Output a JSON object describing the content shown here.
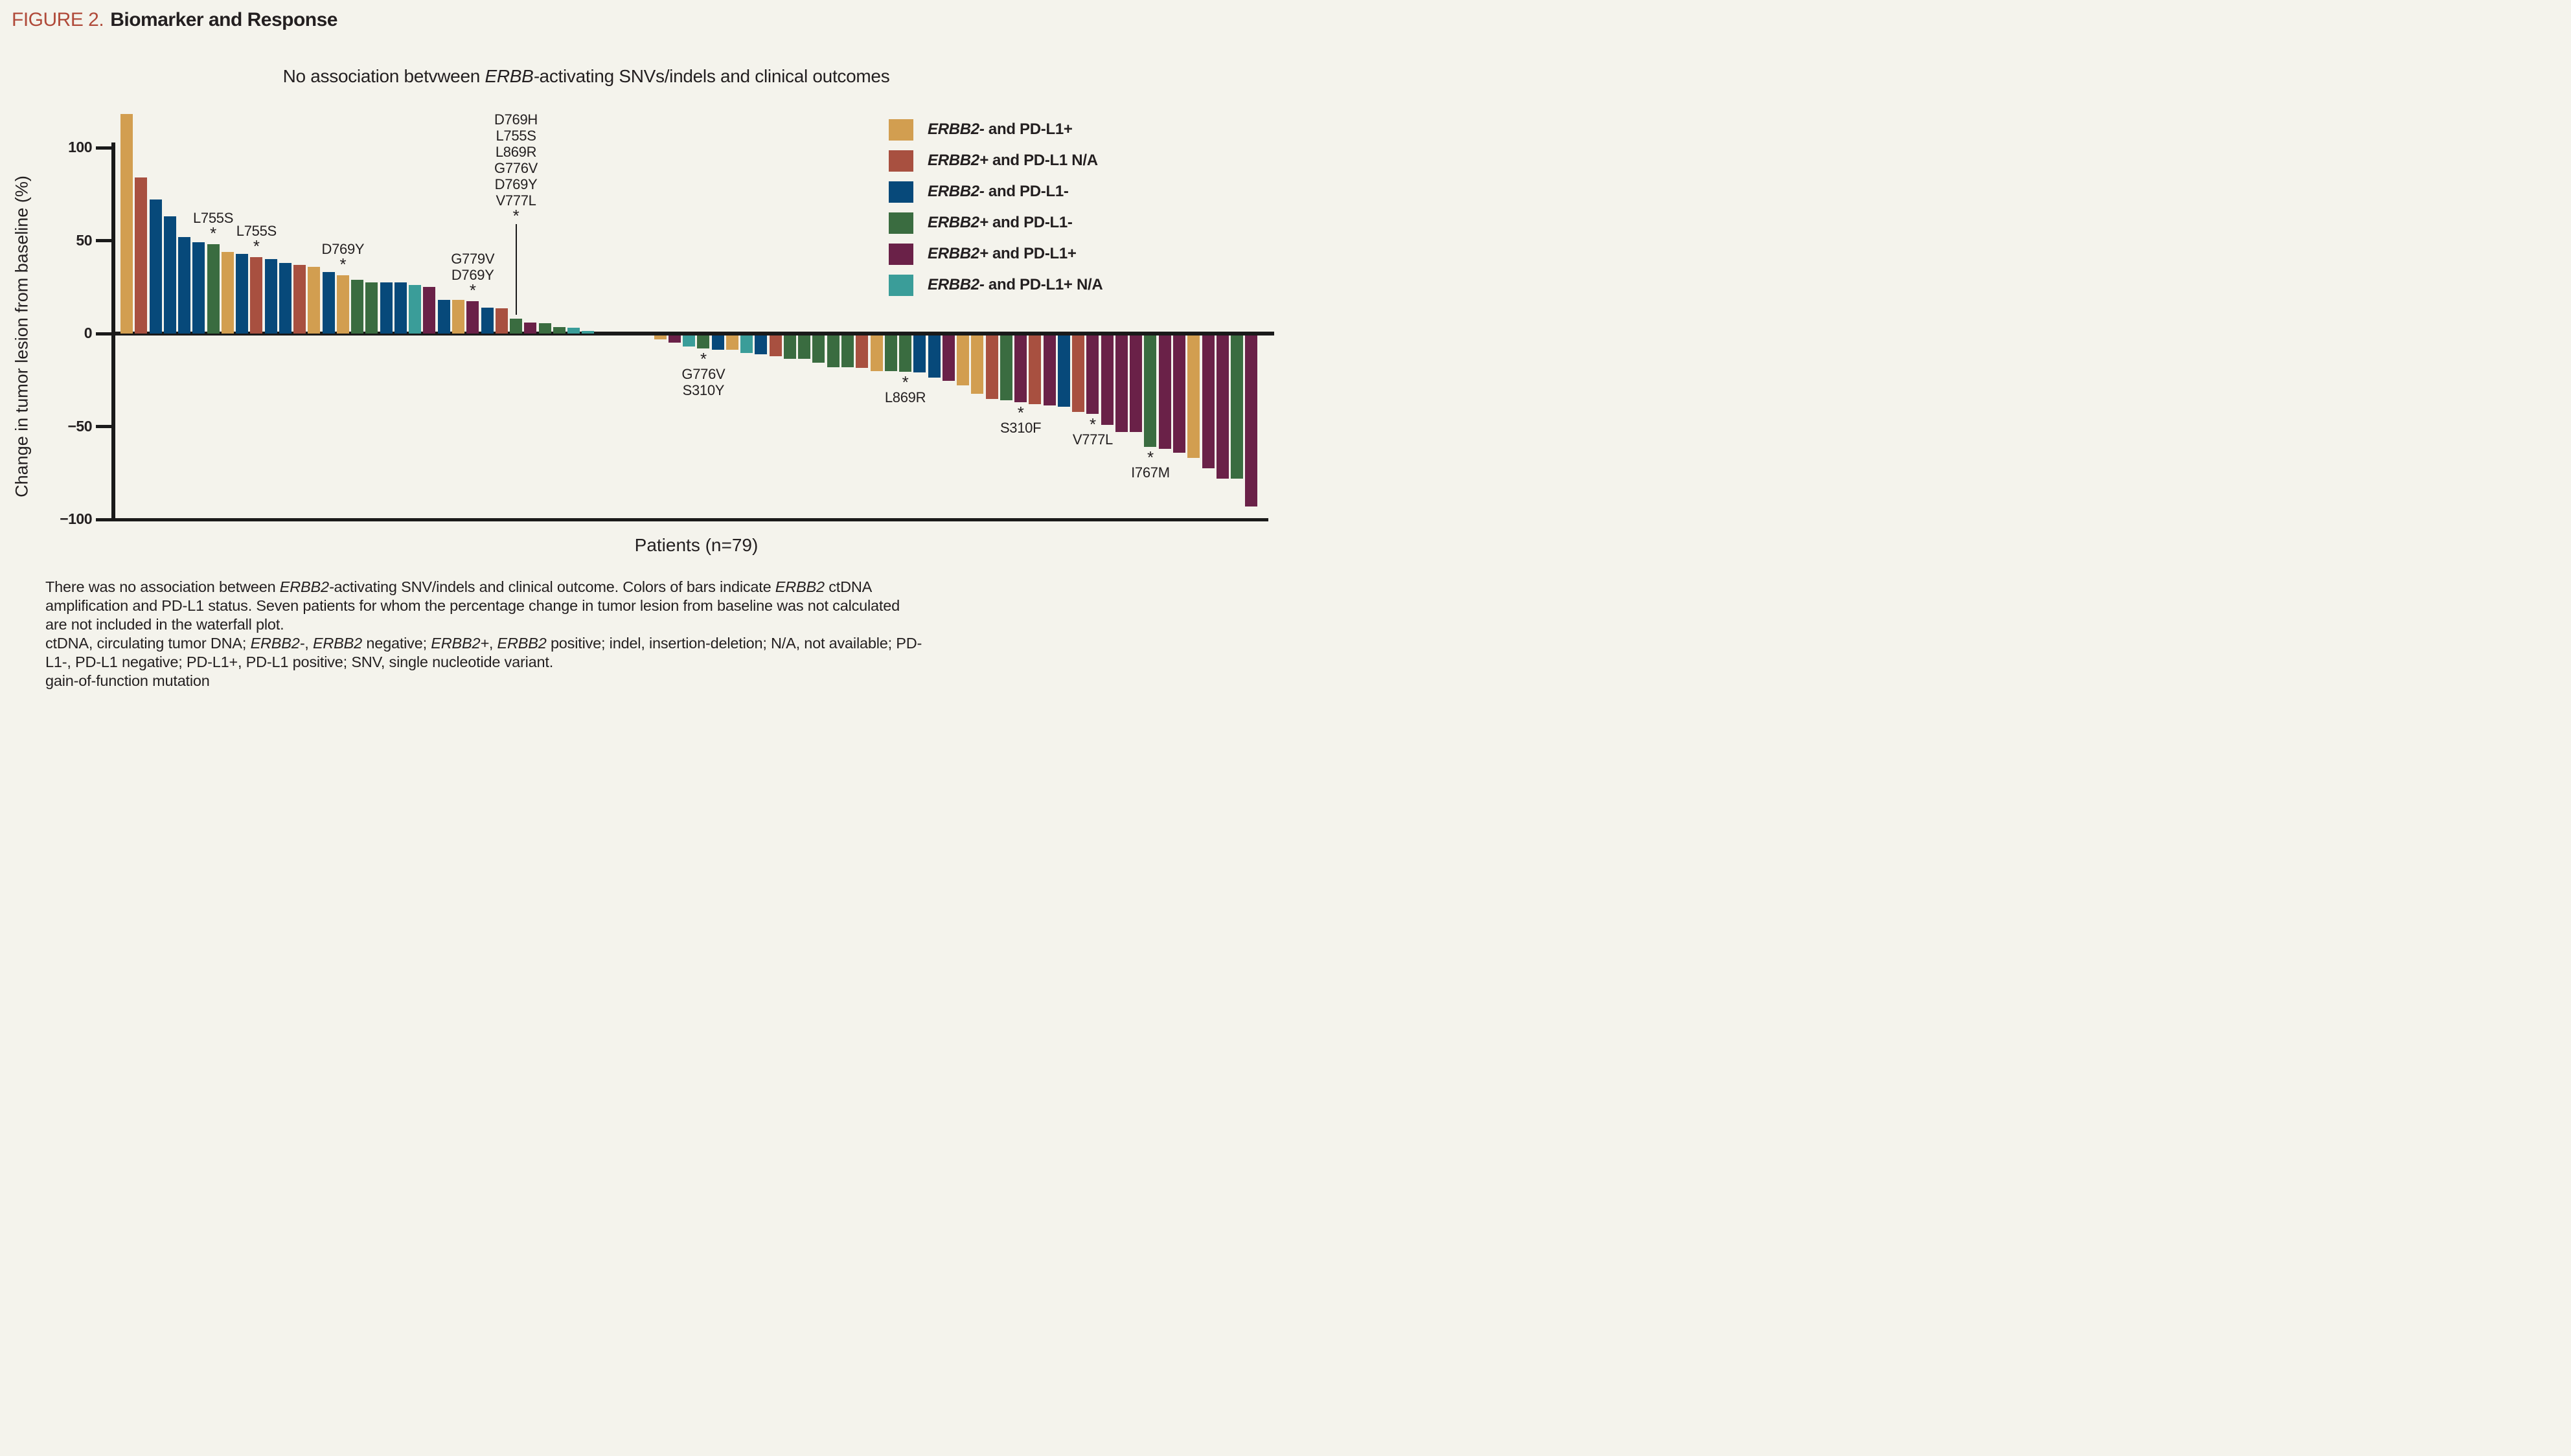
{
  "page": {
    "figure_label": "FIGURE 2.",
    "figure_title": "Biomarker and Response",
    "background": "#F4F3EC"
  },
  "chart_data": {
    "type": "bar",
    "title": "No association betvween ERBB-activating SNVs/indels and clinical outcomes",
    "xlabel": "Patients (n=79)",
    "ylabel": "Change in tumor lesion from baseline (%)",
    "ylim": [
      -100,
      120
    ],
    "grid": false,
    "legend_position": "top-right",
    "yticks": [
      {
        "label": "100",
        "v": 100
      },
      {
        "label": "50",
        "v": 50
      },
      {
        "label": "0",
        "v": 0
      },
      {
        "label": "-50",
        "v": -50
      },
      {
        "label": "-100",
        "v": -100
      }
    ],
    "colors": {
      "gold": "#D29E50",
      "rust": "#A85040",
      "blue": "#07497A",
      "green": "#3A6C40",
      "purple": "#6A2148",
      "teal": "#3A9D99"
    },
    "legend": [
      {
        "label": "ERBB2- and PD-L1+",
        "color": "gold"
      },
      {
        "label": "ERBB2+ and PD-L1 N/A",
        "color": "rust"
      },
      {
        "label": "ERBB2- and PD-L1-",
        "color": "blue"
      },
      {
        "label": "ERBB2+ and PD-L1-",
        "color": "green"
      },
      {
        "label": "ERBB2+ and PD-L1+",
        "color": "purple"
      },
      {
        "label": "ERBB2- and PD-L1+ N/A",
        "color": "teal"
      }
    ],
    "gap_after_index": 32,
    "gap_slots": 4,
    "total_slots": 79,
    "bars": [
      {
        "v": 118,
        "c": "gold"
      },
      {
        "v": 84,
        "c": "rust"
      },
      {
        "v": 72,
        "c": "blue"
      },
      {
        "v": 63,
        "c": "blue"
      },
      {
        "v": 52,
        "c": "blue"
      },
      {
        "v": 49,
        "c": "blue"
      },
      {
        "v": 48,
        "c": "green",
        "ann": {
          "lines": [
            "L755S"
          ],
          "pos": "above"
        }
      },
      {
        "v": 44,
        "c": "gold"
      },
      {
        "v": 43,
        "c": "blue"
      },
      {
        "v": 41,
        "c": "rust",
        "ann": {
          "lines": [
            "L755S"
          ],
          "pos": "above"
        }
      },
      {
        "v": 40,
        "c": "blue"
      },
      {
        "v": 38,
        "c": "blue"
      },
      {
        "v": 37,
        "c": "rust"
      },
      {
        "v": 36,
        "c": "gold"
      },
      {
        "v": 33,
        "c": "blue"
      },
      {
        "v": 31.5,
        "c": "gold",
        "ann": {
          "lines": [
            "D769Y"
          ],
          "pos": "above"
        }
      },
      {
        "v": 29,
        "c": "green"
      },
      {
        "v": 27.5,
        "c": "green"
      },
      {
        "v": 27.5,
        "c": "blue"
      },
      {
        "v": 27.5,
        "c": "blue"
      },
      {
        "v": 26,
        "c": "teal"
      },
      {
        "v": 25,
        "c": "purple"
      },
      {
        "v": 18,
        "c": "blue"
      },
      {
        "v": 18,
        "c": "gold"
      },
      {
        "v": 17.5,
        "c": "purple",
        "ann": {
          "lines": [
            "G779V",
            "D769Y"
          ],
          "pos": "above"
        }
      },
      {
        "v": 14,
        "c": "blue"
      },
      {
        "v": 13.5,
        "c": "rust"
      },
      {
        "v": 8,
        "c": "green",
        "ann": {
          "lines": [
            "D769H",
            "L755S",
            "L869R",
            "G776V",
            "D769Y",
            "V777L"
          ],
          "pos": "leader"
        }
      },
      {
        "v": 6,
        "c": "purple"
      },
      {
        "v": 5.5,
        "c": "green"
      },
      {
        "v": 3.5,
        "c": "green"
      },
      {
        "v": 3,
        "c": "teal"
      },
      {
        "v": 1.5,
        "c": "teal"
      },
      {
        "v": -2,
        "c": "gold"
      },
      {
        "v": -4,
        "c": "purple"
      },
      {
        "v": -6,
        "c": "teal"
      },
      {
        "v": -7,
        "c": "green",
        "ann": {
          "lines": [
            "G776V",
            "S310Y"
          ],
          "pos": "below"
        }
      },
      {
        "v": -7.5,
        "c": "blue"
      },
      {
        "v": -7.5,
        "c": "gold"
      },
      {
        "v": -9.5,
        "c": "teal"
      },
      {
        "v": -10,
        "c": "blue"
      },
      {
        "v": -11,
        "c": "rust"
      },
      {
        "v": -12.5,
        "c": "green"
      },
      {
        "v": -12.5,
        "c": "green"
      },
      {
        "v": -14.5,
        "c": "green"
      },
      {
        "v": -17,
        "c": "green"
      },
      {
        "v": -17,
        "c": "green"
      },
      {
        "v": -17.5,
        "c": "rust"
      },
      {
        "v": -19,
        "c": "gold"
      },
      {
        "v": -19,
        "c": "green"
      },
      {
        "v": -19.5,
        "c": "green",
        "ann": {
          "lines": [
            "L869R"
          ],
          "pos": "below"
        }
      },
      {
        "v": -20,
        "c": "blue"
      },
      {
        "v": -22.5,
        "c": "blue"
      },
      {
        "v": -24.5,
        "c": "purple"
      },
      {
        "v": -27,
        "c": "gold"
      },
      {
        "v": -31.5,
        "c": "gold"
      },
      {
        "v": -34,
        "c": "rust"
      },
      {
        "v": -35,
        "c": "green"
      },
      {
        "v": -36,
        "c": "purple",
        "ann": {
          "lines": [
            "S310F"
          ],
          "pos": "below"
        }
      },
      {
        "v": -37,
        "c": "rust"
      },
      {
        "v": -37.5,
        "c": "purple"
      },
      {
        "v": -38.5,
        "c": "blue"
      },
      {
        "v": -41,
        "c": "rust"
      },
      {
        "v": -42,
        "c": "purple",
        "ann": {
          "lines": [
            "V777L"
          ],
          "pos": "below"
        }
      },
      {
        "v": -48,
        "c": "purple"
      },
      {
        "v": -52,
        "c": "purple"
      },
      {
        "v": -52,
        "c": "purple"
      },
      {
        "v": -60,
        "c": "green",
        "ann": {
          "lines": [
            "I767M"
          ],
          "pos": "below"
        }
      },
      {
        "v": -61,
        "c": "purple"
      },
      {
        "v": -63,
        "c": "purple"
      },
      {
        "v": -66,
        "c": "gold"
      },
      {
        "v": -71.5,
        "c": "purple"
      },
      {
        "v": -77,
        "c": "purple"
      },
      {
        "v": -77,
        "c": "green"
      },
      {
        "v": -92,
        "c": "purple"
      }
    ]
  },
  "footnotes": {
    "lines": [
      "There was no association between ERBB2-activating SNV/indels and clinical outcome. Colors of bars indicate ERBB2 ctDNA",
      "amplification and PD-L1 status. Seven patients for whom the percentage change in tumor lesion from baseline was not calculated",
      "are not included in the waterfall plot.",
      "ctDNA, circulating tumor DNA; ERBB2-, ERBB2 negative; ERBB2+, ERBB2 positive; indel, insertion-deletion; N/A, not available; PD-",
      "L1-, PD-L1 negative; PD-L1+, PD-L1 positive; SNV, single nucleotide variant.",
      "gain-of-function mutation"
    ]
  }
}
